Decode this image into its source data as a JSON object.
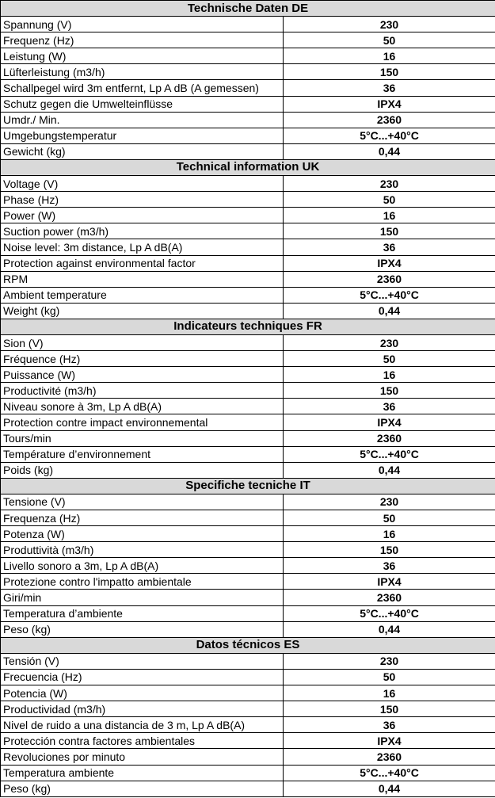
{
  "sections": [
    {
      "title": "Technische Daten DE",
      "rows": [
        {
          "label": "Spannung (V)",
          "value": "230"
        },
        {
          "label": "Frequenz (Hz)",
          "value": "50"
        },
        {
          "label": "Leistung (W)",
          "value": "16"
        },
        {
          "label": "Lüfterleistung (m3/h)",
          "value": "150"
        },
        {
          "label": "Schallpegel wird 3m entfernt, Lp A dB (A gemessen)",
          "value": "36"
        },
        {
          "label": "Schutz gegen die Umwelteinflüsse",
          "value": "IPX4"
        },
        {
          "label": "Umdr./ Min.",
          "value": "2360"
        },
        {
          "label": "Umgebungstemperatur",
          "value": "5°C...+40°C"
        },
        {
          "label": "Gewicht (kg)",
          "value": "0,44"
        }
      ]
    },
    {
      "title": "Technical information UK",
      "rows": [
        {
          "label": "Voltage (V)",
          "value": "230"
        },
        {
          "label": "Phase (Hz)",
          "value": "50"
        },
        {
          "label": "Power (W)",
          "value": "16"
        },
        {
          "label": "Suction power (m3/h)",
          "value": "150"
        },
        {
          "label": "Noise level: 3m distance, Lp A dB(A)",
          "value": "36"
        },
        {
          "label": "Protection against environmental factor",
          "value": "IPX4"
        },
        {
          "label": "RPM",
          "value": "2360"
        },
        {
          "label": "Ambient temperature",
          "value": "5°C...+40°C"
        },
        {
          "label": "Weight (kg)",
          "value": "0,44"
        }
      ]
    },
    {
      "title": "Indicateurs techniques FR",
      "rows": [
        {
          "label": "Sion (V)",
          "value": "230"
        },
        {
          "label": "Fréquence (Hz)",
          "value": "50"
        },
        {
          "label": "Puissance (W)",
          "value": "16"
        },
        {
          "label": "Productivité (m3/h)",
          "value": "150"
        },
        {
          "label": "Niveau sonore à 3m, Lp A dB(A)",
          "value": "36"
        },
        {
          "label": "Protection contre impact environnemental",
          "value": "IPX4"
        },
        {
          "label": "Tours/min",
          "value": "2360"
        },
        {
          "label": "Température d’environnement",
          "value": "5°C...+40°C"
        },
        {
          "label": "Poids (kg)",
          "value": "0,44"
        }
      ]
    },
    {
      "title": "Specifiche tecniche IT",
      "rows": [
        {
          "label": "Tensione (V)",
          "value": "230"
        },
        {
          "label": "Frequenza (Hz)",
          "value": "50"
        },
        {
          "label": "Potenza (W)",
          "value": "16"
        },
        {
          "label": "Produttività (m3/h)",
          "value": "150"
        },
        {
          "label": "Livello sonoro a 3m, Lp A dB(A)",
          "value": "36"
        },
        {
          "label": "Protezione contro l'impatto ambientale",
          "value": "IPX4"
        },
        {
          "label": "Giri/min",
          "value": "2360"
        },
        {
          "label": "Temperatura d’ambiente",
          "value": "5°C...+40°C"
        },
        {
          "label": "Peso (kg)",
          "value": "0,44"
        }
      ]
    },
    {
      "title": "Datos técnicos ES",
      "rows": [
        {
          "label": "Tensión (V)",
          "value": "230"
        },
        {
          "label": "Frecuencia (Hz)",
          "value": "50"
        },
        {
          "label": "Potencia (W)",
          "value": "16"
        },
        {
          "label": "Productividad (m3/h)",
          "value": "150"
        },
        {
          "label": "Nivel de ruido a una distancia de 3 m, Lp A dB(A)",
          "value": "36"
        },
        {
          "label": "Protección contra factores ambientales",
          "value": "IPX4"
        },
        {
          "label": "Revoluciones por minuto",
          "value": "2360"
        },
        {
          "label": "Temperatura ambiente",
          "value": "5°C...+40°C"
        },
        {
          "label": "Peso (kg)",
          "value": "0,44"
        }
      ]
    }
  ]
}
